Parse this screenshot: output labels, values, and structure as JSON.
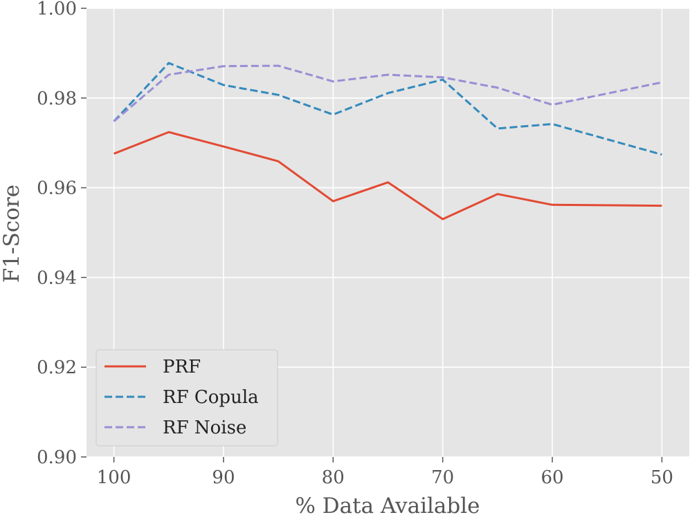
{
  "chart_data": {
    "type": "line",
    "title": "",
    "xlabel": "% Data Available",
    "ylabel": "F1-Score",
    "x": [
      100,
      95,
      90,
      85,
      80,
      75,
      70,
      65,
      60,
      50
    ],
    "xlim": [
      102.5,
      47.5
    ],
    "xticks": [
      "100",
      "90",
      "80",
      "70",
      "60",
      "50"
    ],
    "ylim": [
      0.9,
      1.0
    ],
    "yticks": [
      "0.90",
      "0.92",
      "0.94",
      "0.96",
      "0.98",
      "1.00"
    ],
    "grid": true,
    "legend_position": "lower-left",
    "series": [
      {
        "name": "PRF",
        "style": "solid",
        "color": "#E24A33",
        "values": [
          0.9676,
          0.9724,
          0.9692,
          0.9659,
          0.957,
          0.9612,
          0.953,
          0.9586,
          0.9562,
          0.956
        ]
      },
      {
        "name": "RF Copula",
        "style": "dashed",
        "color": "#348ABD",
        "values": [
          0.9748,
          0.9878,
          0.9829,
          0.9807,
          0.9763,
          0.9811,
          0.9841,
          0.9732,
          0.9742,
          0.9674
        ]
      },
      {
        "name": "RF Noise",
        "style": "dashed",
        "color": "#988ED5",
        "values": [
          0.9748,
          0.9852,
          0.9871,
          0.9872,
          0.9837,
          0.9852,
          0.9846,
          0.9823,
          0.9785,
          0.9835
        ]
      }
    ]
  }
}
